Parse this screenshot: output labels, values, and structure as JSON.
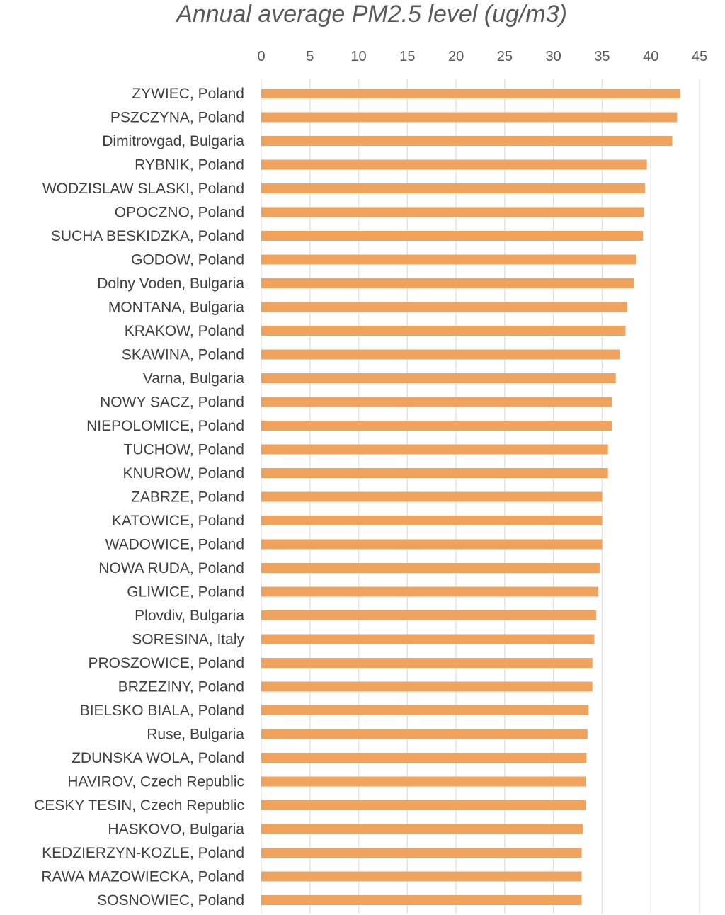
{
  "chart_data": {
    "type": "bar",
    "orientation": "horizontal",
    "title": "Annual average PM2.5 level (ug/m3)",
    "xlabel": "",
    "ylabel": "",
    "xlim": [
      0,
      45
    ],
    "xticks": [
      0,
      5,
      10,
      15,
      20,
      25,
      30,
      35,
      40,
      45
    ],
    "grid": true,
    "legend": "none",
    "bar_color": "#F0A35C",
    "categories": [
      "ZYWIEC, Poland",
      "PSZCZYNA, Poland",
      "Dimitrovgad, Bulgaria",
      "RYBNIK, Poland",
      "WODZISLAW SLASKI, Poland",
      "OPOCZNO, Poland",
      "SUCHA BESKIDZKA, Poland",
      "GODOW, Poland",
      "Dolny Voden, Bulgaria",
      "MONTANA, Bulgaria",
      "KRAKOW, Poland",
      "SKAWINA, Poland",
      "Varna, Bulgaria",
      "NOWY SACZ, Poland",
      "NIEPOLOMICE, Poland",
      "TUCHOW, Poland",
      "KNUROW, Poland",
      "ZABRZE, Poland",
      "KATOWICE, Poland",
      "WADOWICE, Poland",
      "NOWA RUDA, Poland",
      "GLIWICE, Poland",
      "Plovdiv, Bulgaria",
      "SORESINA, Italy",
      "PROSZOWICE, Poland",
      "BRZEZINY, Poland",
      "BIELSKO BIALA, Poland",
      "Ruse, Bulgaria",
      "ZDUNSKA WOLA, Poland",
      "HAVIROV, Czech Republic",
      "CESKY TESIN, Czech Republic",
      "HASKOVO, Bulgaria",
      "KEDZIERZYN-KOZLE, Poland",
      "RAWA MAZOWIECKA, Poland",
      "SOSNOWIEC, Poland"
    ],
    "values": [
      43,
      42.7,
      42.2,
      39.6,
      39.4,
      39.3,
      39.2,
      38.5,
      38.3,
      37.6,
      37.4,
      36.8,
      36.4,
      36,
      36,
      35.6,
      35.6,
      35,
      35,
      35,
      34.8,
      34.6,
      34.4,
      34.2,
      34,
      34,
      33.6,
      33.5,
      33.4,
      33.3,
      33.3,
      33,
      32.9,
      32.9,
      32.9
    ]
  }
}
